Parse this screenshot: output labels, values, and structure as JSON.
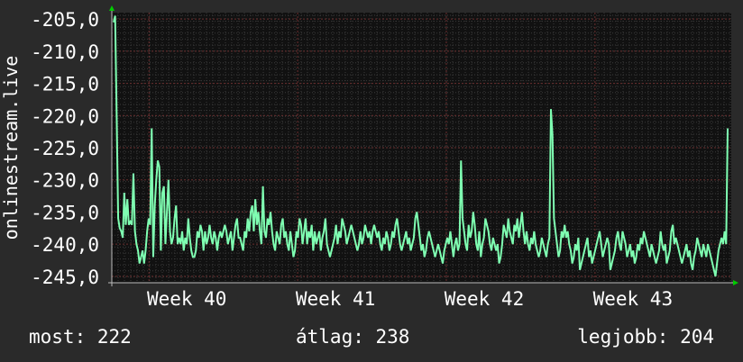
{
  "chart_data": {
    "type": "line",
    "ylabel": "onlinestream.live",
    "yticks": [
      "-205,0",
      "-210,0",
      "-215,0",
      "-220,0",
      "-225,0",
      "-230,0",
      "-235,0",
      "-240,0",
      "-245,0"
    ],
    "ytick_values": [
      -205,
      -210,
      -215,
      -220,
      -225,
      -230,
      -235,
      -240,
      -245
    ],
    "ylim": [
      -246,
      -204
    ],
    "xlabels": [
      "Week 40",
      "Week 41",
      "Week 42",
      "Week 43"
    ],
    "xlabel_positions": [
      0.06,
      0.3,
      0.54,
      0.78
    ],
    "grid": true,
    "series": [
      {
        "color": "#7fffb2",
        "values": [
          -205.5,
          -204.5,
          -220,
          -236,
          -237.5,
          -238,
          -239,
          -232,
          -237,
          -233,
          -237,
          -236.5,
          -237,
          -229,
          -238,
          -240,
          -241,
          -243,
          -242,
          -241,
          -243,
          -241,
          -238,
          -236,
          -237,
          -222,
          -242,
          -234,
          -230,
          -227,
          -228,
          -241,
          -232,
          -231,
          -240,
          -235,
          -230,
          -238,
          -240,
          -239,
          -236,
          -234,
          -240,
          -239,
          -240,
          -238,
          -241,
          -239,
          -240,
          -236,
          -239,
          -241,
          -242,
          -242,
          -241,
          -238,
          -239,
          -237,
          -238,
          -241,
          -238,
          -240,
          -239,
          -237,
          -239,
          -240,
          -238,
          -239,
          -241,
          -239,
          -238,
          -239,
          -238,
          -237,
          -238,
          -240,
          -239,
          -238,
          -241,
          -239,
          -237,
          -236,
          -239,
          -239,
          -240,
          -241,
          -238,
          -239,
          -236,
          -238,
          -235,
          -234,
          -238,
          -233,
          -237,
          -235,
          -238,
          -240,
          -231,
          -238,
          -239,
          -236,
          -237,
          -235,
          -238,
          -240,
          -241,
          -238,
          -239,
          -240,
          -237,
          -236,
          -239,
          -238,
          -240,
          -241,
          -238,
          -240,
          -242,
          -241,
          -238,
          -239,
          -236,
          -237,
          -240,
          -238,
          -236,
          -240,
          -238,
          -239,
          -237,
          -241,
          -238,
          -240,
          -239,
          -238,
          -241,
          -239,
          -238,
          -236,
          -240,
          -241,
          -242,
          -241,
          -240,
          -239,
          -237,
          -240,
          -238,
          -239,
          -236,
          -237,
          -238,
          -240,
          -239,
          -238,
          -237,
          -238,
          -239,
          -240,
          -241,
          -240,
          -238,
          -240,
          -239,
          -237,
          -238,
          -239,
          -238,
          -240,
          -238,
          -237,
          -238,
          -239,
          -238,
          -240,
          -241,
          -239,
          -240,
          -238,
          -239,
          -241,
          -240,
          -238,
          -239,
          -237,
          -236,
          -238,
          -240,
          -241,
          -240,
          -239,
          -238,
          -240,
          -239,
          -241,
          -240,
          -239,
          -236,
          -235,
          -237,
          -239,
          -241,
          -240,
          -242,
          -241,
          -239,
          -238,
          -239,
          -240,
          -241,
          -242,
          -241,
          -240,
          -241,
          -242,
          -243,
          -241,
          -240,
          -239,
          -240,
          -238,
          -240,
          -242,
          -240,
          -239,
          -241,
          -240,
          -227,
          -236,
          -238,
          -240,
          -241,
          -237,
          -239,
          -238,
          -235,
          -237,
          -240,
          -241,
          -238,
          -242,
          -240,
          -239,
          -236,
          -237,
          -238,
          -240,
          -241,
          -239,
          -240,
          -241,
          -240,
          -243,
          -242,
          -240,
          -237,
          -238,
          -239,
          -236,
          -238,
          -239,
          -240,
          -237,
          -238,
          -236,
          -239,
          -237,
          -235,
          -238,
          -240,
          -238,
          -240,
          -241,
          -239,
          -240,
          -238,
          -240,
          -241,
          -242,
          -241,
          -239,
          -240,
          -241,
          -242,
          -240,
          -239,
          -219,
          -223,
          -236,
          -238,
          -240,
          -242,
          -241,
          -238,
          -239,
          -237,
          -239,
          -238,
          -240,
          -241,
          -243,
          -242,
          -240,
          -241,
          -239,
          -244,
          -243,
          -242,
          -241,
          -240,
          -239,
          -242,
          -241,
          -243,
          -242,
          -241,
          -240,
          -239,
          -238,
          -240,
          -242,
          -241,
          -240,
          -239,
          -240,
          -244,
          -243,
          -242,
          -241,
          -239,
          -238,
          -240,
          -241,
          -238,
          -239,
          -240,
          -242,
          -241,
          -240,
          -242,
          -241,
          -243,
          -242,
          -240,
          -241,
          -239,
          -240,
          -238,
          -239,
          -240,
          -241,
          -242,
          -240,
          -241,
          -242,
          -243,
          -242,
          -241,
          -238,
          -240,
          -241,
          -240,
          -243,
          -242,
          -241,
          -238,
          -237,
          -240,
          -239,
          -240,
          -241,
          -242,
          -243,
          -242,
          -241,
          -240,
          -242,
          -241,
          -243,
          -244,
          -242,
          -241,
          -239,
          -240,
          -241,
          -242,
          -240,
          -241,
          -242,
          -240,
          -241,
          -242,
          -243,
          -244,
          -245,
          -243,
          -241,
          -240,
          -239,
          -240,
          -238,
          -240,
          -222
        ]
      }
    ]
  },
  "stats": {
    "current": "most: 222",
    "average": "átlag: 238",
    "best": "legjobb: 204"
  },
  "colors": {
    "background": "#2a2a2a",
    "plot_background": "#111111",
    "grid_minor": "#3a3a3a",
    "grid_major": "#6b2f2f",
    "axis": "#bbbbbb",
    "arrow": "#00cc00",
    "text": "#ffffff"
  }
}
